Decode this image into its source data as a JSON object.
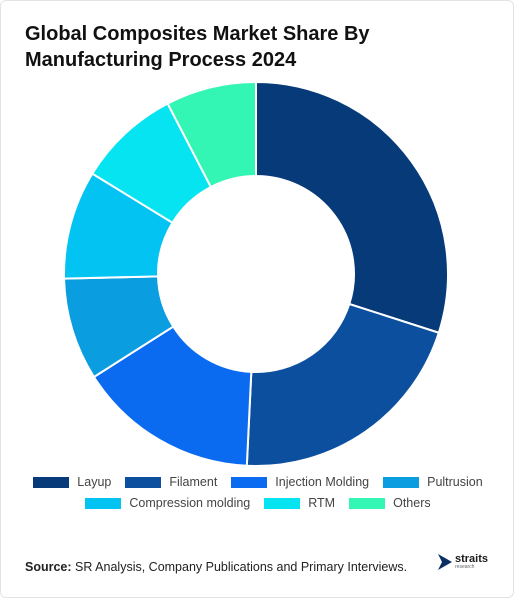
{
  "title": "Global Composites Market Share By Manufacturing Process 2024",
  "source": {
    "label": "Source:",
    "text": "SR Analysis, Company Publications and Primary Interviews."
  },
  "logo": {
    "word": "straits",
    "sub": "research"
  },
  "colors": {
    "Layup": "#063a78",
    "Filament": "#0b4f9e",
    "Injection Molding": "#0a6af0",
    "Pultrusion": "#0a9de0",
    "Compression molding": "#03c3f2",
    "RTM": "#06e4f2",
    "Others": "#33f5b4"
  },
  "chart_data": {
    "type": "pie",
    "style": "donut",
    "title": "Global Composites Market Share By Manufacturing Process 2024",
    "categories": [
      "Layup",
      "Filament",
      "Injection Molding",
      "Pultrusion",
      "Compression molding",
      "RTM",
      "Others"
    ],
    "values": [
      29.5,
      20.5,
      15,
      8.5,
      9,
      8.5,
      7.5
    ],
    "legend_position": "bottom"
  }
}
